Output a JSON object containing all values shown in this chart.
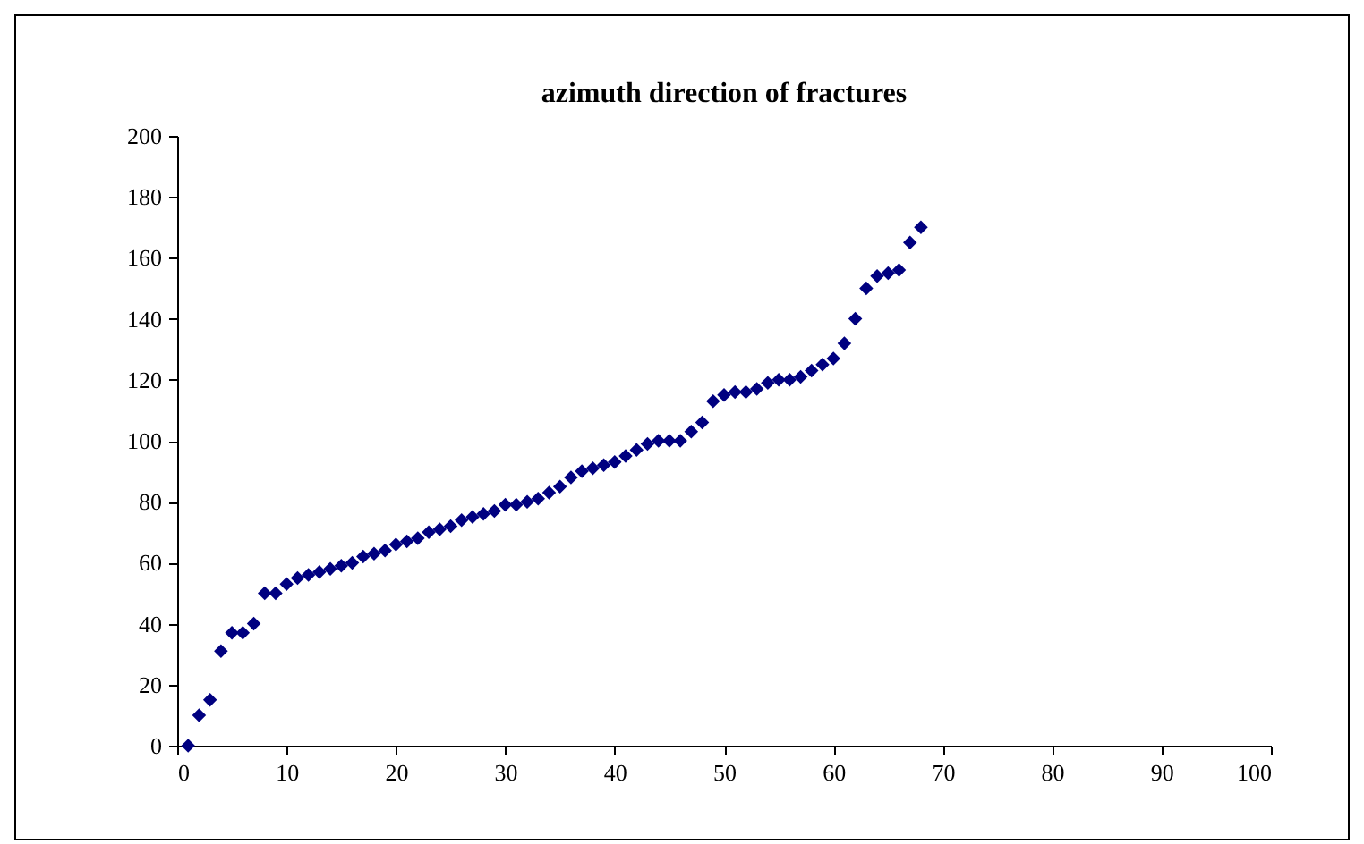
{
  "chart_data": {
    "type": "scatter",
    "title": "azimuth direction of fractures",
    "x": [
      1,
      2,
      3,
      4,
      5,
      6,
      7,
      8,
      9,
      10,
      11,
      12,
      13,
      14,
      15,
      16,
      17,
      18,
      19,
      20,
      21,
      22,
      23,
      24,
      25,
      26,
      27,
      28,
      29,
      30,
      31,
      32,
      33,
      34,
      35,
      36,
      37,
      38,
      39,
      40,
      41,
      42,
      43,
      44,
      45,
      46,
      47,
      48,
      49,
      50,
      51,
      52,
      53,
      54,
      55,
      56,
      57,
      58,
      59,
      60,
      61,
      62,
      63,
      64,
      65,
      66,
      67,
      68
    ],
    "series": [
      {
        "color": "#000080",
        "values": [
          0,
          10,
          15,
          31,
          37,
          37,
          40,
          50,
          50,
          53,
          55,
          56,
          57,
          58,
          59,
          60,
          62,
          63,
          64,
          66,
          67,
          68,
          70,
          71,
          72,
          74,
          75,
          76,
          77,
          79,
          79,
          80,
          81,
          83,
          85,
          88,
          90,
          91,
          92,
          93,
          95,
          97,
          99,
          100,
          100,
          100,
          103,
          106,
          113,
          115,
          116,
          116,
          117,
          119,
          120,
          120,
          121,
          123,
          125,
          127,
          132,
          140,
          150,
          154,
          155,
          156,
          165,
          170
        ]
      }
    ],
    "xlim": [
      0,
      100
    ],
    "xticks": [
      0,
      10,
      20,
      30,
      40,
      50,
      60,
      70,
      80,
      90,
      100
    ],
    "ylim": [
      0,
      200
    ],
    "yticks": [
      0,
      20,
      40,
      60,
      80,
      100,
      120,
      140,
      160,
      180,
      200
    ],
    "marker": "diamond",
    "grid": false,
    "legend": false
  }
}
